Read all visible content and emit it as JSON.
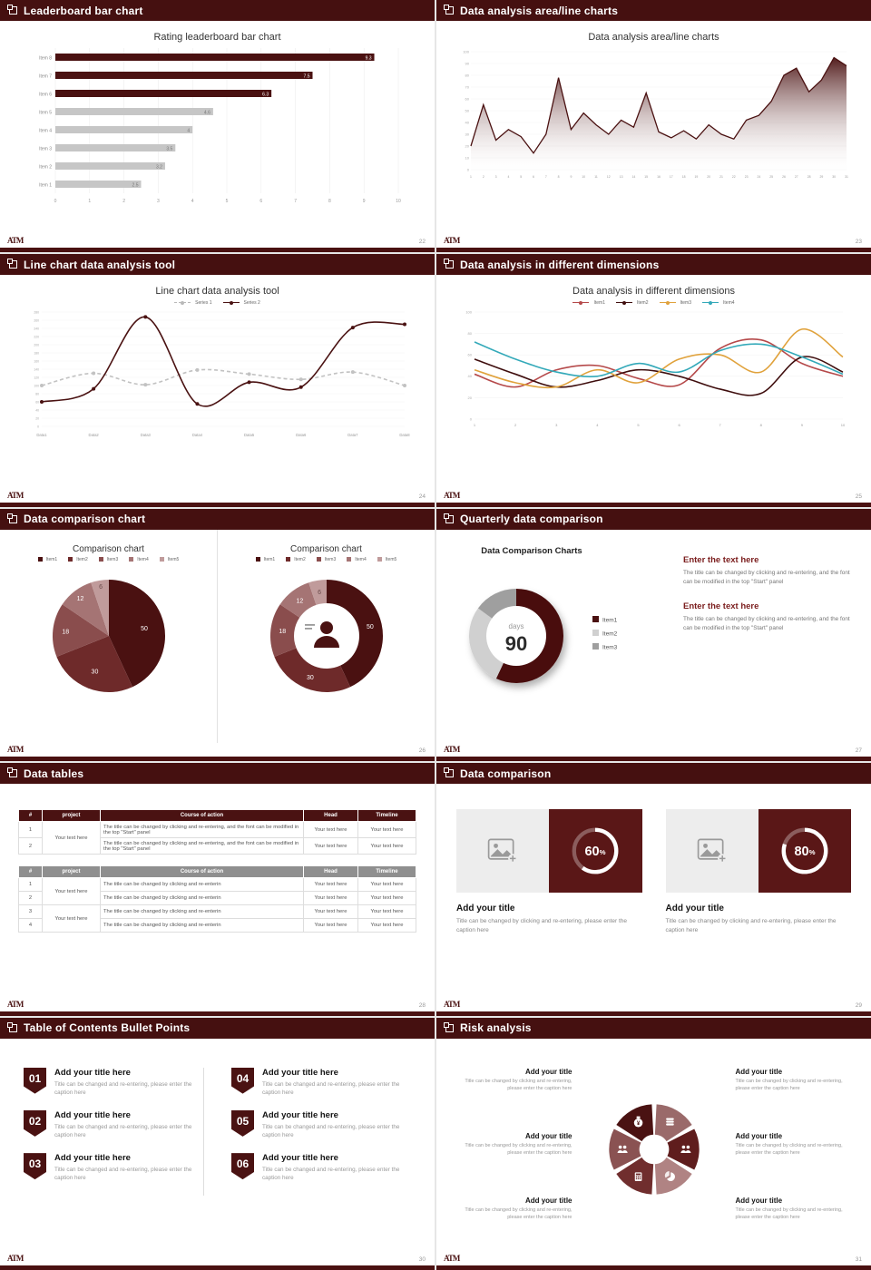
{
  "footer": {
    "logo": "ATM"
  },
  "theme": {
    "maroon": "#4a1111",
    "maroon_header": "#451010",
    "gray_bar": "#c6c6c6",
    "pie_colors": [
      "#4a1111",
      "#6e2a2a",
      "#8a4d4d",
      "#a57474",
      "#c09b9b"
    ],
    "line4_colors": [
      "#b5494a",
      "#3f0e0e",
      "#e0a23c",
      "#33a9b9"
    ],
    "donut90_colors": [
      "#4a1111",
      "#d0d0d0",
      "#9f9f9f"
    ]
  },
  "slides": {
    "leaderboard": {
      "header": "Leaderboard bar chart",
      "page": "22",
      "chart_data": {
        "type": "bar",
        "title": "Rating leaderboard bar chart",
        "categories": [
          "Item 1",
          "Item 2",
          "Item 3",
          "Item 4",
          "Item 5",
          "Item 6",
          "Item 7",
          "Item 8"
        ],
        "values": [
          2.5,
          3.2,
          3.5,
          4,
          4.6,
          6.3,
          7.5,
          9.3
        ],
        "xlim": [
          0,
          10
        ],
        "highlight_count": 3
      }
    },
    "area": {
      "header": "Data analysis area/line charts",
      "page": "23",
      "chart_data": {
        "type": "area",
        "title": "Data analysis area/line charts",
        "x": [
          1,
          2,
          3,
          4,
          5,
          6,
          7,
          8,
          9,
          10,
          11,
          12,
          13,
          14,
          15,
          16,
          17,
          18,
          19,
          20,
          21,
          22,
          23,
          24,
          25,
          26,
          27,
          28,
          29,
          30,
          31
        ],
        "values": [
          20,
          55,
          25,
          34,
          28,
          14,
          30,
          78,
          34,
          48,
          38,
          30,
          42,
          36,
          65,
          32,
          27,
          33,
          26,
          38,
          30,
          26,
          42,
          46,
          58,
          80,
          86,
          66,
          76,
          95,
          88
        ],
        "ylim": [
          0,
          100
        ],
        "ytick": 10
      }
    },
    "linetool": {
      "header": "Line chart data analysis tool",
      "page": "24",
      "chart_data": {
        "type": "line",
        "title": "Line chart data analysis tool",
        "categories": [
          "Data1",
          "Data2",
          "Data3",
          "Data4",
          "Data5",
          "Data6",
          "Data7",
          "Data8"
        ],
        "series": [
          {
            "name": "Series 1",
            "values": [
              100,
              130,
              102,
              138,
              128,
              115,
              133,
              100
            ]
          },
          {
            "name": "Series 2",
            "values": [
              60,
              92,
              268,
              55,
              108,
              96,
              242,
              250
            ]
          }
        ],
        "ylim": [
          0,
          280
        ],
        "ytick": 20
      }
    },
    "dimensions": {
      "header": "Data analysis in different dimensions",
      "page": "25",
      "chart_data": {
        "type": "line",
        "title": "Data analysis in different dimensions",
        "x": [
          1,
          2,
          3,
          4,
          5,
          6,
          7,
          8,
          9,
          10
        ],
        "series": [
          {
            "name": "Item1",
            "values": [
              42,
              30,
              46,
              50,
              38,
              32,
              66,
              74,
              52,
              40
            ]
          },
          {
            "name": "Item2",
            "values": [
              56,
              42,
              30,
              36,
              46,
              40,
              28,
              24,
              58,
              44
            ]
          },
          {
            "name": "Item3",
            "values": [
              46,
              34,
              30,
              46,
              34,
              56,
              60,
              44,
              84,
              58
            ]
          },
          {
            "name": "Item4",
            "values": [
              72,
              56,
              44,
              40,
              52,
              44,
              64,
              70,
              58,
              42
            ]
          }
        ],
        "ylim": [
          0,
          100
        ],
        "ytick": 20
      }
    },
    "comparison": {
      "header": "Data comparison chart",
      "page": "26",
      "charts": [
        {
          "type": "pie",
          "title": "Comparison chart",
          "labels": [
            "Item1",
            "Item2",
            "Item3",
            "Item4",
            "Item5"
          ],
          "values": [
            50,
            30,
            18,
            12,
            6
          ]
        },
        {
          "type": "donut",
          "title": "Comparison chart",
          "labels": [
            "Item1",
            "Item2",
            "Item3",
            "Item4",
            "Item5"
          ],
          "values": [
            50,
            30,
            18,
            12,
            6
          ]
        }
      ]
    },
    "quarterly": {
      "header": "Quarterly data comparison",
      "page": "27",
      "chart_data": {
        "type": "donut",
        "title": "Data Comparison Charts",
        "labels": [
          "Item1",
          "Item2",
          "Item3"
        ],
        "values": [
          57,
          28,
          15
        ],
        "center_label": "days",
        "center_value": "90"
      },
      "blocks": [
        {
          "title": "Enter the text here",
          "body": "The title can be changed by clicking and re-entering, and the font can be modified in the top \"Start\" panel"
        },
        {
          "title": "Enter the text here",
          "body": "The title can be changed by clicking and re-entering, and the font can be modified in the top \"Start\" panel"
        }
      ]
    },
    "tables": {
      "header": "Data tables",
      "page": "28",
      "table1": {
        "headers": [
          "#",
          "project",
          "Course of action",
          "Head",
          "Timeline"
        ],
        "project_text": "Your text here",
        "rows": [
          {
            "num": "1",
            "course": "The title can be changed by clicking and re-entering, and the font can be modified in the top \"Start\" panel",
            "head": "Your text here",
            "timeline": "Your text here"
          },
          {
            "num": "2",
            "course": "The title can be changed by clicking and re-entering, and the font can be modified in the top \"Start\" panel",
            "head": "Your text here",
            "timeline": "Your text here"
          }
        ]
      },
      "table2": {
        "headers": [
          "#",
          "project",
          "Course of action",
          "Head",
          "Timeline"
        ],
        "project_text": "Your text here",
        "rows": [
          {
            "num": "1",
            "course": "The title can be changed by clicking and re-enterin",
            "head": "Your text here",
            "timeline": "Your text here"
          },
          {
            "num": "2",
            "course": "The title can be changed by clicking and re-enterin",
            "head": "Your text here",
            "timeline": "Your text here"
          },
          {
            "num": "3",
            "course": "The title can be changed by clicking and re-enterin",
            "head": "Your text here",
            "timeline": "Your text here"
          },
          {
            "num": "4",
            "course": "The title can be changed by clicking and re-enterin",
            "head": "Your text here",
            "timeline": "Your text here"
          }
        ]
      }
    },
    "datacomp": {
      "header": "Data comparison",
      "page": "29",
      "cards": [
        {
          "percent": 60,
          "title": "Add your title",
          "caption": "Title can be changed by clicking and re-entering, please enter the caption here"
        },
        {
          "percent": 80,
          "title": "Add your title",
          "caption": "Title can be changed by clicking and re-entering, please enter the caption here"
        }
      ]
    },
    "toc": {
      "header": "Table of Contents Bullet Points",
      "page": "30",
      "items": [
        {
          "num": "01",
          "title": "Add your title here",
          "caption": "Title can be changed and re-entering, please enter the caption here"
        },
        {
          "num": "02",
          "title": "Add your title here",
          "caption": "Title can be changed and re-entering, please enter the caption here"
        },
        {
          "num": "03",
          "title": "Add your title here",
          "caption": "Title can be changed and re-entering, please enter the caption here"
        },
        {
          "num": "04",
          "title": "Add your title here",
          "caption": "Title can be changed and re-entering, please enter the caption here"
        },
        {
          "num": "05",
          "title": "Add your title here",
          "caption": "Title can be changed and re-entering, please enter the caption here"
        },
        {
          "num": "06",
          "title": "Add your title here",
          "caption": "Title can be changed and re-entering, please enter the caption here"
        }
      ]
    },
    "risk": {
      "header": "Risk analysis",
      "page": "31",
      "items": [
        {
          "icon": "money-bag",
          "title": "Add your title",
          "caption": "Title can be changed by clicking and re-entering, please enter the caption here"
        },
        {
          "icon": "meeting",
          "title": "Add your title",
          "caption": "Title can be changed by clicking and re-entering, please enter the caption here"
        },
        {
          "icon": "calculator",
          "title": "Add your title",
          "caption": "Title can be changed by clicking and re-entering, please enter the caption here"
        },
        {
          "icon": "coins",
          "title": "Add your title",
          "caption": "Title can be changed by clicking and re-entering, please enter the caption here"
        },
        {
          "icon": "people",
          "title": "Add your title",
          "caption": "Title can be changed by clicking and re-entering, please enter the caption here"
        },
        {
          "icon": "pie-chart",
          "title": "Add your title",
          "caption": "Title can be changed by clicking and re-entering, please enter the caption here"
        }
      ]
    }
  }
}
